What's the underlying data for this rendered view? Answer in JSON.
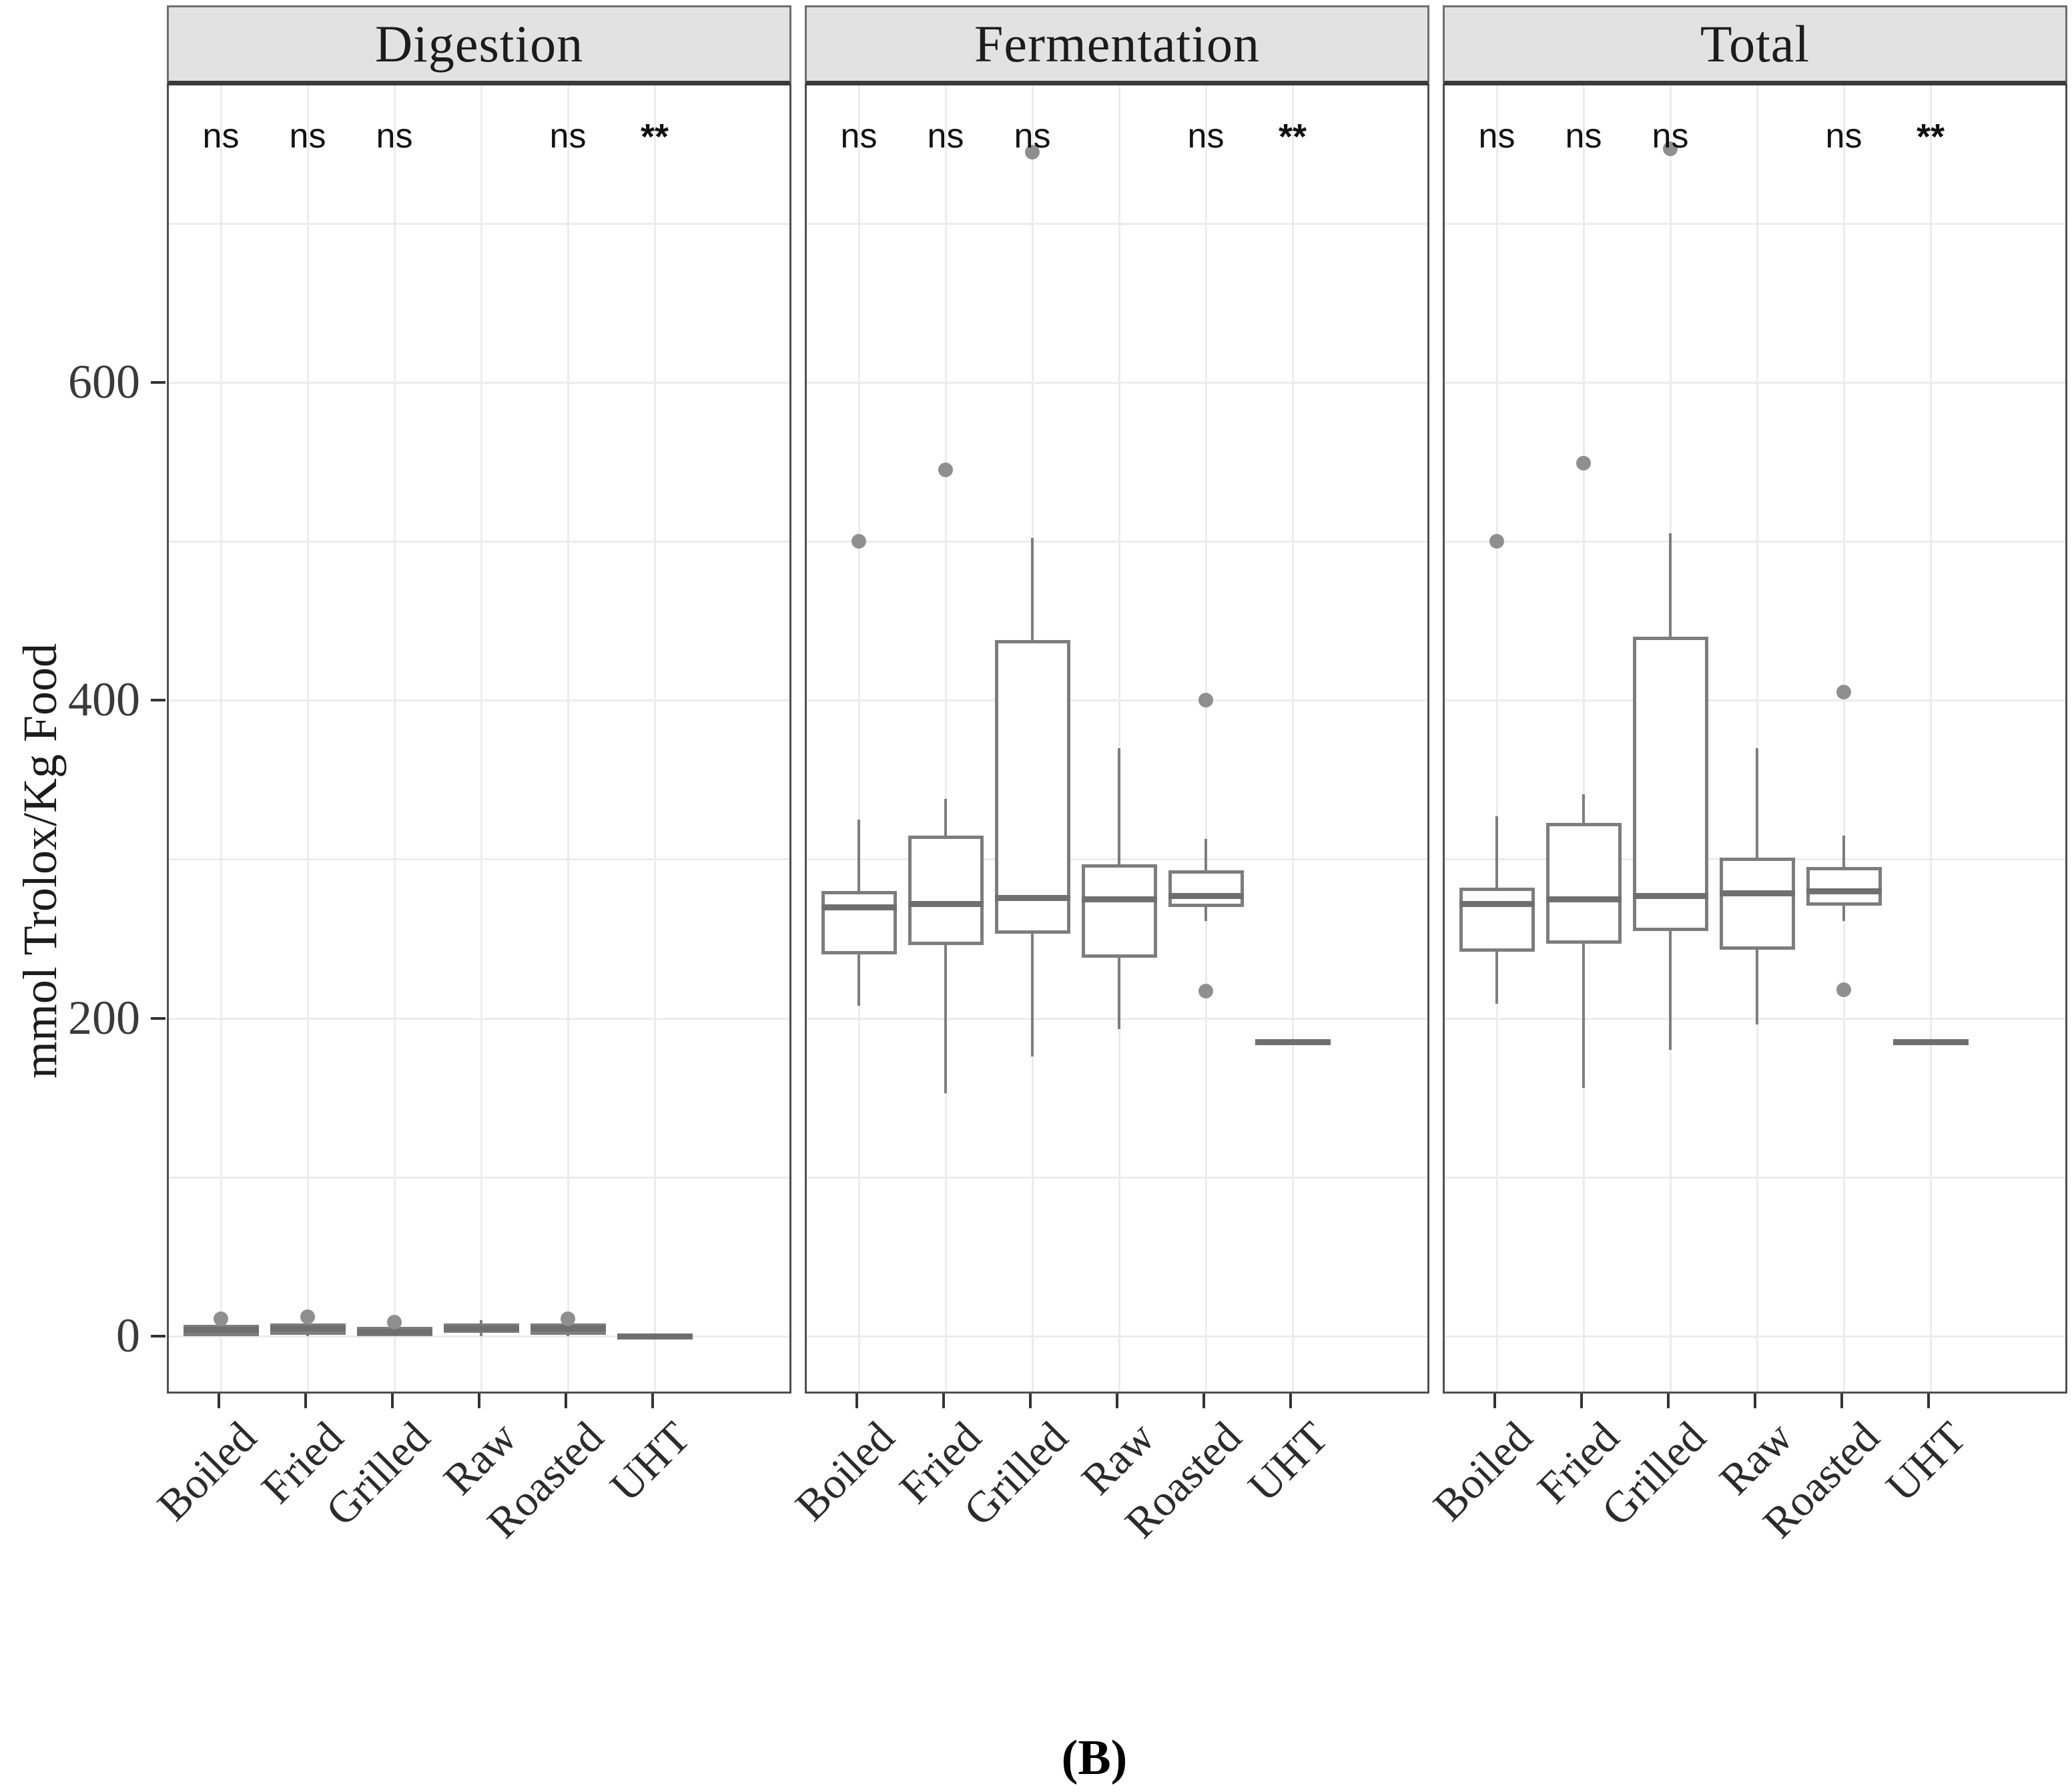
{
  "figure": {
    "caption": "(B)"
  },
  "chart_data": {
    "type": "boxplot",
    "facets": true,
    "title": "",
    "ylabel": "mmol Trolox/Kg Food",
    "xlabel": "",
    "ylim": [
      -36,
      787
    ],
    "grid": "on",
    "gridline_step": 100,
    "legend_position": "none",
    "y_axis": {
      "ticks": [
        0,
        200,
        400,
        600
      ]
    },
    "categories": [
      "Boiled",
      "Fried",
      "Grilled",
      "Raw",
      "Roasted",
      "UHT"
    ],
    "colors": {
      "box_border": "#7d7d7d",
      "median": "#6f6f6f",
      "whisker": "#7d7d7d",
      "outlier": "#8f8f8f",
      "strip_background": "#e2e2e2",
      "gridline": "#ececec",
      "panel_border": "#4f4f4f"
    },
    "panels": [
      {
        "label": "Digestion",
        "significance": [
          "ns",
          "ns",
          "ns",
          "",
          "ns",
          "**"
        ],
        "boxes": [
          {
            "category": "Boiled",
            "whisker_low": 0,
            "q1": 0,
            "median": 4,
            "q3": 7,
            "whisker_high": 8,
            "outliers": [
              11
            ]
          },
          {
            "category": "Fried",
            "whisker_low": 0,
            "q1": 1,
            "median": 5,
            "q3": 8,
            "whisker_high": 9,
            "outliers": [
              12
            ]
          },
          {
            "category": "Grilled",
            "whisker_low": 0,
            "q1": 0,
            "median": 3,
            "q3": 6,
            "whisker_high": 7,
            "outliers": [
              9
            ]
          },
          {
            "category": "Raw",
            "whisker_low": 0,
            "q1": 2,
            "median": 5,
            "q3": 8,
            "whisker_high": 10,
            "outliers": []
          },
          {
            "category": "Roasted",
            "whisker_low": 0,
            "q1": 1,
            "median": 5,
            "q3": 8,
            "whisker_high": 9,
            "outliers": [
              11
            ]
          },
          {
            "category": "UHT",
            "whisker_low": 0,
            "q1": 0,
            "median": 0,
            "q3": 1,
            "whisker_high": 1,
            "outliers": []
          }
        ]
      },
      {
        "label": "Fermentation",
        "significance": [
          "ns",
          "ns",
          "ns",
          "",
          "ns",
          "**"
        ],
        "boxes": [
          {
            "category": "Boiled",
            "whisker_low": 208,
            "q1": 240,
            "median": 270,
            "q3": 280,
            "whisker_high": 325,
            "outliers": [
              500
            ]
          },
          {
            "category": "Fried",
            "whisker_low": 153,
            "q1": 246,
            "median": 272,
            "q3": 315,
            "whisker_high": 338,
            "outliers": [
              545
            ]
          },
          {
            "category": "Grilled",
            "whisker_low": 176,
            "q1": 253,
            "median": 276,
            "q3": 438,
            "whisker_high": 502,
            "outliers": [
              745
            ]
          },
          {
            "category": "Raw",
            "whisker_low": 193,
            "q1": 238,
            "median": 275,
            "q3": 297,
            "whisker_high": 370,
            "outliers": []
          },
          {
            "category": "Roasted",
            "whisker_low": 261,
            "q1": 270,
            "median": 277,
            "q3": 293,
            "whisker_high": 313,
            "outliers": [
              217,
              400
            ]
          },
          {
            "category": "UHT",
            "whisker_low": 185,
            "q1": 185,
            "median": 185,
            "q3": 185,
            "whisker_high": 185,
            "outliers": []
          }
        ]
      },
      {
        "label": "Total",
        "significance": [
          "ns",
          "ns",
          "ns",
          "",
          "ns",
          "**"
        ],
        "boxes": [
          {
            "category": "Boiled",
            "whisker_low": 209,
            "q1": 242,
            "median": 272,
            "q3": 282,
            "whisker_high": 327,
            "outliers": [
              500
            ]
          },
          {
            "category": "Fried",
            "whisker_low": 156,
            "q1": 247,
            "median": 275,
            "q3": 323,
            "whisker_high": 341,
            "outliers": [
              549
            ]
          },
          {
            "category": "Grilled",
            "whisker_low": 180,
            "q1": 255,
            "median": 277,
            "q3": 440,
            "whisker_high": 505,
            "outliers": [
              747
            ]
          },
          {
            "category": "Raw",
            "whisker_low": 196,
            "q1": 243,
            "median": 279,
            "q3": 301,
            "whisker_high": 370,
            "outliers": []
          },
          {
            "category": "Roasted",
            "whisker_low": 261,
            "q1": 271,
            "median": 280,
            "q3": 295,
            "whisker_high": 315,
            "outliers": [
              218,
              405
            ]
          },
          {
            "category": "UHT",
            "whisker_low": 185,
            "q1": 185,
            "median": 185,
            "q3": 185,
            "whisker_high": 185,
            "outliers": []
          }
        ]
      }
    ]
  }
}
